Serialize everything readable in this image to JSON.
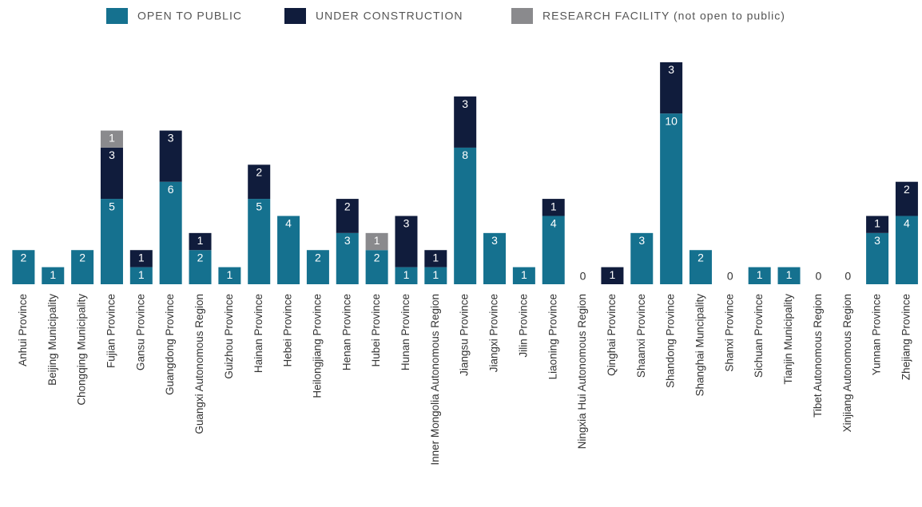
{
  "chart_data": {
    "type": "stacked_bar",
    "categories": [
      "Anhui Province",
      "Beijing Municipality",
      "Chongqing Municipality",
      "Fujian Province",
      "Gansu Province",
      "Guangdong Province",
      "Guangxi Autonomous Region",
      "Guizhou Province",
      "Hainan Province",
      "Hebei Province",
      "Heilongjiang Province",
      "Henan Province",
      "Hubei Province",
      "Hunan Province",
      "Inner Mongolia Autonomous Region",
      "Jiangsu Province",
      "Jiangxi Province",
      "Jilin Province",
      "Liaoning Province",
      "Ningxia Hui Autonomous Region",
      "Qinghai Province",
      "Shaanxi Province",
      "Shandong Province",
      "Shanghai Muncipality",
      "Shanxi Province",
      "Sichuan Province",
      "Tianjin Municipality",
      "Tibet Autonomous Region",
      "Xinjiang Autonomous Region",
      "Yunnan Province",
      "Zhejiang Province"
    ],
    "series": [
      {
        "name": "OPEN TO PUBLIC",
        "color": "#15718f",
        "values": [
          2,
          1,
          2,
          5,
          1,
          6,
          2,
          1,
          5,
          4,
          2,
          3,
          2,
          1,
          1,
          8,
          3,
          1,
          4,
          0,
          0,
          3,
          10,
          2,
          0,
          1,
          1,
          0,
          0,
          3,
          4
        ]
      },
      {
        "name": "UNDER CONSTRUCTION",
        "color": "#101c3c",
        "values": [
          0,
          0,
          0,
          3,
          1,
          3,
          1,
          0,
          2,
          0,
          0,
          2,
          0,
          3,
          1,
          3,
          0,
          0,
          1,
          0,
          1,
          0,
          3,
          0,
          0,
          0,
          0,
          0,
          0,
          1,
          2
        ]
      },
      {
        "name": "RESEARCH FACILITY (not open to public)",
        "color": "#8a8a8d",
        "values": [
          0,
          0,
          0,
          1,
          0,
          0,
          0,
          0,
          0,
          0,
          0,
          0,
          1,
          0,
          0,
          0,
          0,
          0,
          0,
          0,
          0,
          0,
          0,
          0,
          0,
          0,
          0,
          0,
          0,
          0,
          0
        ]
      }
    ],
    "ylim": [
      0,
      13
    ],
    "legend": "top"
  }
}
